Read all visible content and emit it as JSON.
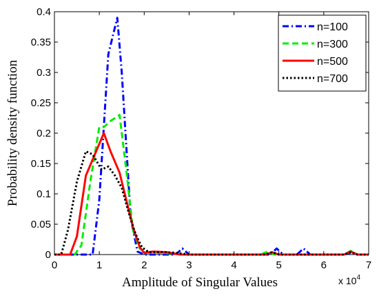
{
  "chart_data": {
    "type": "line",
    "title": "",
    "xlabel": "Amplitude of Singular Values",
    "ylabel": "Probability density function",
    "x_multiplier": {
      "base": "x 10",
      "exponent": "4"
    },
    "xlim": [
      0,
      7
    ],
    "ylim": [
      0,
      0.4
    ],
    "x_ticks": [
      0,
      1,
      2,
      3,
      4,
      5,
      6,
      7
    ],
    "y_ticks": [
      0,
      0.05,
      0.1,
      0.15,
      0.2,
      0.25,
      0.3,
      0.35,
      0.4
    ],
    "x_tick_labels": [
      "0",
      "1",
      "2",
      "3",
      "4",
      "5",
      "6",
      "7"
    ],
    "y_tick_labels": [
      "0",
      "0.05",
      "0.1",
      "0.15",
      "0.2",
      "0.25",
      "0.3",
      "0.35",
      "0.4"
    ],
    "grid": false,
    "legend_position": "top-right",
    "series": [
      {
        "name": "n=100",
        "color": "#0000ff",
        "dash": "dash-dot",
        "x": [
          0,
          0.85,
          1.0,
          1.2,
          1.4,
          1.5,
          1.7,
          1.85,
          2.0,
          2.7,
          2.85,
          3.0,
          4.8,
          4.95,
          5.1,
          5.4,
          5.55,
          5.7,
          6.45,
          6.6,
          6.75,
          7.0
        ],
        "y": [
          0,
          0,
          0.09,
          0.33,
          0.39,
          0.3,
          0.06,
          0.005,
          0,
          0,
          0.01,
          0,
          0,
          0.01,
          0,
          0,
          0.01,
          0,
          0,
          0.003,
          0,
          0
        ]
      },
      {
        "name": "n=300",
        "color": "#00ee00",
        "dash": "dashed",
        "x": [
          0,
          0.45,
          0.6,
          0.8,
          1.0,
          1.1,
          1.25,
          1.45,
          1.6,
          1.75,
          1.9,
          2.05,
          2.3,
          2.6,
          2.9,
          4.6,
          4.75,
          4.9,
          6.45,
          6.6,
          6.75,
          7.0
        ],
        "y": [
          0,
          0,
          0.015,
          0.12,
          0.21,
          0.21,
          0.22,
          0.23,
          0.14,
          0.04,
          0.01,
          0.003,
          0.003,
          0.002,
          0,
          0,
          0.005,
          0,
          0,
          0.006,
          0,
          0
        ]
      },
      {
        "name": "n=500",
        "color": "#ff0000",
        "dash": "solid",
        "x": [
          0,
          0.35,
          0.5,
          0.7,
          0.9,
          1.1,
          1.25,
          1.45,
          1.6,
          1.75,
          1.9,
          2.0,
          2.2,
          2.5,
          2.8,
          4.7,
          4.85,
          5.0,
          6.45,
          6.6,
          6.75,
          7.0
        ],
        "y": [
          0,
          0,
          0.03,
          0.13,
          0.165,
          0.2,
          0.17,
          0.135,
          0.09,
          0.045,
          0.012,
          0.003,
          0.005,
          0.004,
          0,
          0,
          0.004,
          0,
          0,
          0.005,
          0,
          0
        ]
      },
      {
        "name": "n=700",
        "color": "#000000",
        "dash": "dotted",
        "x": [
          0,
          0.15,
          0.3,
          0.5,
          0.7,
          0.85,
          1.05,
          1.2,
          1.35,
          1.5,
          1.65,
          1.8,
          1.95,
          2.1,
          2.4,
          2.7,
          3.0,
          4.7,
          4.85,
          5.0,
          6.45,
          6.6,
          6.75,
          7.0
        ],
        "y": [
          0,
          0,
          0.04,
          0.12,
          0.17,
          0.165,
          0.14,
          0.145,
          0.13,
          0.11,
          0.07,
          0.035,
          0.012,
          0.004,
          0.004,
          0.003,
          0,
          0,
          0.004,
          0,
          0,
          0.004,
          0,
          0
        ]
      }
    ]
  }
}
